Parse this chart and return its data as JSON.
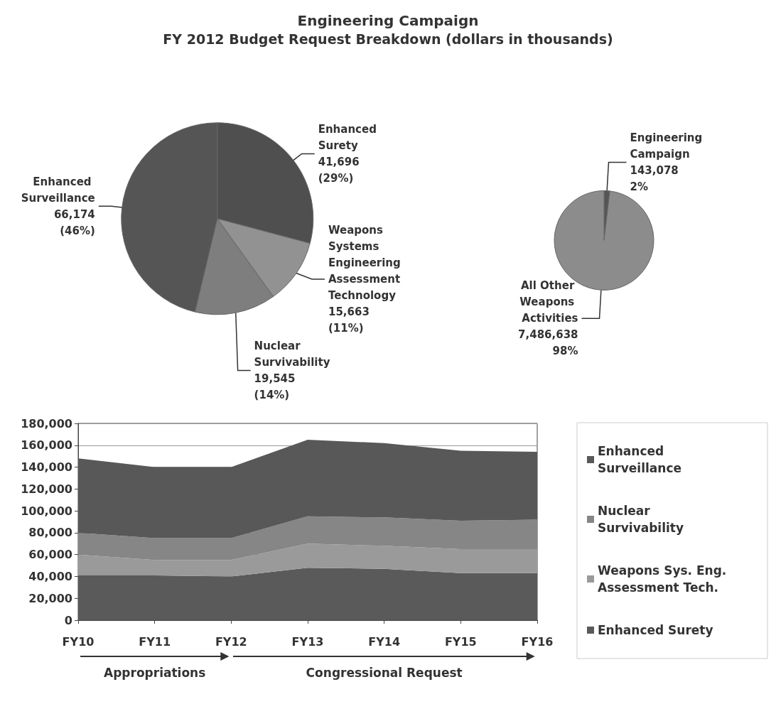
{
  "chart_data": [
    {
      "type": "pie",
      "title": "Engineering Campaign",
      "subtitle": "FY 2012 Budget Request Breakdown (dollars in thousands)",
      "categories": [
        "Enhanced Surety",
        "Weapons Systems Engineering Assessment Technology",
        "Nuclear Survivability",
        "Enhanced Surveillance"
      ],
      "values": [
        41696,
        15663,
        19545,
        66174
      ],
      "value_labels": [
        "41,696 (29%)",
        "15,663 (11%)",
        "19,545 (14%)",
        "66,174 (46%)"
      ],
      "colors": [
        "#4f4f4f",
        "#929292",
        "#7e7e7e",
        "#555555"
      ]
    },
    {
      "type": "pie",
      "categories": [
        "Engineering Campaign",
        "All Other Weapons Activities"
      ],
      "values": [
        143078,
        7486638
      ],
      "value_labels": [
        "143,078 2%",
        "7,486,638 98%"
      ],
      "colors": [
        "#555555",
        "#8c8c8c"
      ]
    },
    {
      "type": "area",
      "stacked": true,
      "categories": [
        "FY10",
        "FY11",
        "FY12",
        "FY13",
        "FY14",
        "FY15",
        "FY16"
      ],
      "series": [
        {
          "name": "Enhanced Surety",
          "color": "#5a5a5a",
          "values": [
            41000,
            41000,
            40000,
            48000,
            47000,
            43000,
            43000
          ]
        },
        {
          "name": "Weapons Sys. Eng. Assessment Tech.",
          "color": "#9a9a9a",
          "values": [
            19000,
            14000,
            15000,
            22000,
            21000,
            22000,
            22000
          ]
        },
        {
          "name": "Nuclear Survivability",
          "color": "#868686",
          "values": [
            20000,
            20000,
            20000,
            25000,
            26000,
            26000,
            27000
          ]
        },
        {
          "name": "Enhanced Surveillance",
          "color": "#585858",
          "values": [
            68000,
            65000,
            65000,
            70000,
            68000,
            64000,
            62000
          ]
        }
      ],
      "ylim": [
        0,
        180000
      ],
      "yticks": [
        0,
        {
          "value": 20000,
          "label": "20,000"
        },
        {
          "value": 40000,
          "label": "40,000"
        },
        {
          "value": 60000,
          "label": "60,000"
        },
        {
          "value": 80000,
          "label": "80,000"
        },
        {
          "value": 100000,
          "label": "100,000"
        },
        {
          "value": 120000,
          "label": "120,000"
        },
        {
          "value": 140000,
          "label": "140,000"
        },
        {
          "value": 160000,
          "label": "160,000"
        },
        {
          "value": 180000,
          "label": "180,000"
        }
      ],
      "grid": "y",
      "legend": "right",
      "annotations": [
        "Appropriations",
        "Congressional Request"
      ]
    }
  ]
}
